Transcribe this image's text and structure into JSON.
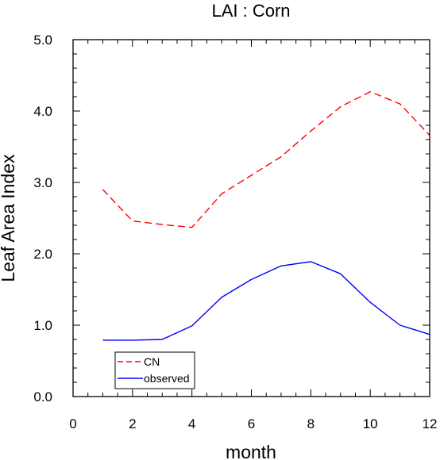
{
  "chart_data": {
    "type": "line",
    "title": "LAI : Corn",
    "xlabel": "month",
    "ylabel": "Leaf Area Index",
    "xlim": [
      0,
      12
    ],
    "ylim": [
      0,
      5
    ],
    "x_ticks": [
      0,
      2,
      4,
      6,
      8,
      10,
      12
    ],
    "x_tick_labels": [
      "0",
      "2",
      "4",
      "6",
      "8",
      "10",
      "12"
    ],
    "y_ticks": [
      0,
      1,
      2,
      3,
      4,
      5
    ],
    "y_tick_labels": [
      "0.0",
      "1.0",
      "2.0",
      "3.0",
      "4.0",
      "5.0"
    ],
    "grid": false,
    "legend_position": "bottom-left",
    "x": [
      1,
      2,
      3,
      4,
      5,
      6,
      7,
      8,
      9,
      10,
      11,
      12
    ],
    "series": [
      {
        "name": "CN",
        "color": "#ff0000",
        "style": "dashed",
        "values": [
          2.9,
          2.46,
          2.41,
          2.37,
          2.84,
          3.1,
          3.36,
          3.72,
          4.06,
          4.27,
          4.1,
          3.66
        ]
      },
      {
        "name": "observed",
        "color": "#0000ff",
        "style": "solid",
        "values": [
          0.79,
          0.79,
          0.8,
          0.99,
          1.39,
          1.64,
          1.83,
          1.89,
          1.72,
          1.32,
          1.0,
          0.87
        ]
      }
    ]
  }
}
